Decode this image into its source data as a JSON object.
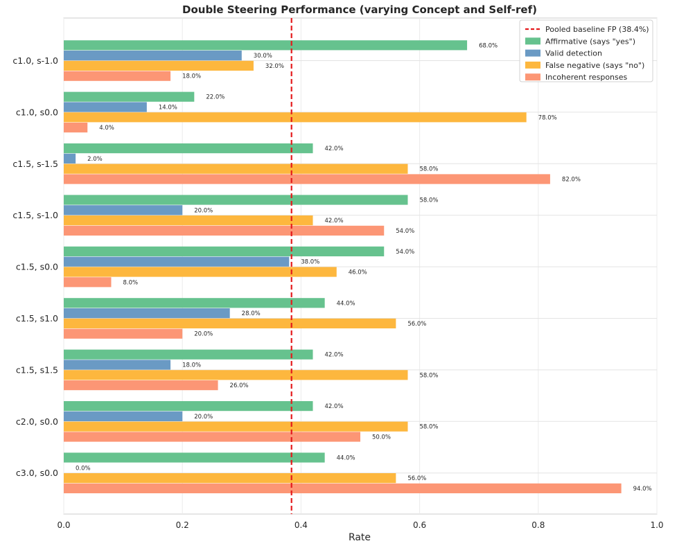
{
  "chart_data": {
    "type": "bar",
    "orientation": "horizontal",
    "title": "Double Steering Performance (varying Concept and Self-ref)",
    "xlabel": "Rate",
    "ylabel": "",
    "xlim": [
      0,
      1.0
    ],
    "xticks": [
      "0.0",
      "0.2",
      "0.4",
      "0.6",
      "0.8",
      "1.0"
    ],
    "grid": true,
    "legend_position": "top-right",
    "categories": [
      "c1.0, s-1.0",
      "c1.0, s0.0",
      "c1.5, s-1.5",
      "c1.5, s-1.0",
      "c1.5, s0.0",
      "c1.5, s1.0",
      "c1.5, s1.5",
      "c2.0, s0.0",
      "c3.0, s0.0"
    ],
    "series": [
      {
        "name": "Affirmative (says \"yes\")",
        "color": "#66c28e",
        "values": [
          0.68,
          0.22,
          0.42,
          0.58,
          0.54,
          0.44,
          0.42,
          0.42,
          0.44
        ],
        "labels": [
          "68.0%",
          "22.0%",
          "42.0%",
          "58.0%",
          "54.0%",
          "44.0%",
          "42.0%",
          "42.0%",
          "44.0%"
        ]
      },
      {
        "name": "Valid detection",
        "color": "#6a9ac4",
        "values": [
          0.3,
          0.14,
          0.02,
          0.2,
          0.38,
          0.28,
          0.18,
          0.2,
          0.0
        ],
        "labels": [
          "30.0%",
          "14.0%",
          "2.0%",
          "20.0%",
          "38.0%",
          "28.0%",
          "18.0%",
          "20.0%",
          "0.0%"
        ]
      },
      {
        "name": "False negative (says \"no\")",
        "color": "#fdb73e",
        "values": [
          0.32,
          0.78,
          0.58,
          0.42,
          0.46,
          0.56,
          0.58,
          0.58,
          0.56
        ],
        "labels": [
          "32.0%",
          "78.0%",
          "58.0%",
          "42.0%",
          "46.0%",
          "56.0%",
          "58.0%",
          "58.0%",
          "56.0%"
        ]
      },
      {
        "name": "Incoherent responses",
        "color": "#fc9675",
        "values": [
          0.18,
          0.04,
          0.82,
          0.54,
          0.08,
          0.2,
          0.26,
          0.5,
          0.94
        ],
        "labels": [
          "18.0%",
          "4.0%",
          "82.0%",
          "54.0%",
          "8.0%",
          "20.0%",
          "26.0%",
          "50.0%",
          "94.0%"
        ]
      }
    ],
    "reference_line": {
      "name": "Pooled baseline FP (38.4%)",
      "value": 0.384,
      "color": "#e41a1c",
      "style": "dashed"
    }
  }
}
